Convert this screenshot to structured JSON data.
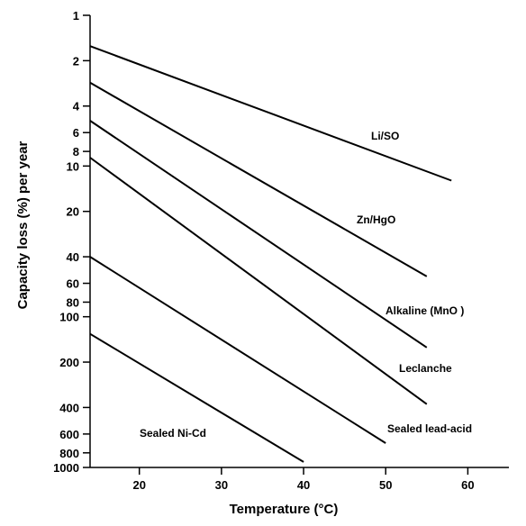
{
  "chart_data": {
    "type": "line",
    "title": "",
    "xlabel": "Temperature  (°C)",
    "ylabel": "Capacity loss (%) per year",
    "xlim": [
      14,
      65
    ],
    "ylim": [
      1,
      1000
    ],
    "y_scale": "log",
    "y_inverted": true,
    "x_ticks": [
      20,
      30,
      40,
      50,
      60
    ],
    "y_ticks": [
      1,
      2,
      4,
      6,
      8,
      10,
      20,
      40,
      60,
      80,
      100,
      200,
      400,
      600,
      800,
      1000
    ],
    "grid": false,
    "legend": "none",
    "series": [
      {
        "name": "Li/SO",
        "x": [
          14,
          58
        ],
        "y": [
          1.6,
          12.5
        ]
      },
      {
        "name": "Zn/HgO",
        "x": [
          14,
          55
        ],
        "y": [
          2.8,
          54
        ]
      },
      {
        "name": "Alkaline (MnO )",
        "x": [
          14,
          55
        ],
        "y": [
          5.0,
          160
        ]
      },
      {
        "name": "Leclanche",
        "x": [
          14,
          55
        ],
        "y": [
          8.8,
          380
        ]
      },
      {
        "name": "Sealed lead-acid",
        "x": [
          14,
          50
        ],
        "y": [
          40,
          690
        ]
      },
      {
        "name": "Sealed Ni-Cd",
        "x": [
          14,
          40
        ],
        "y": [
          130,
          920
        ]
      }
    ]
  }
}
